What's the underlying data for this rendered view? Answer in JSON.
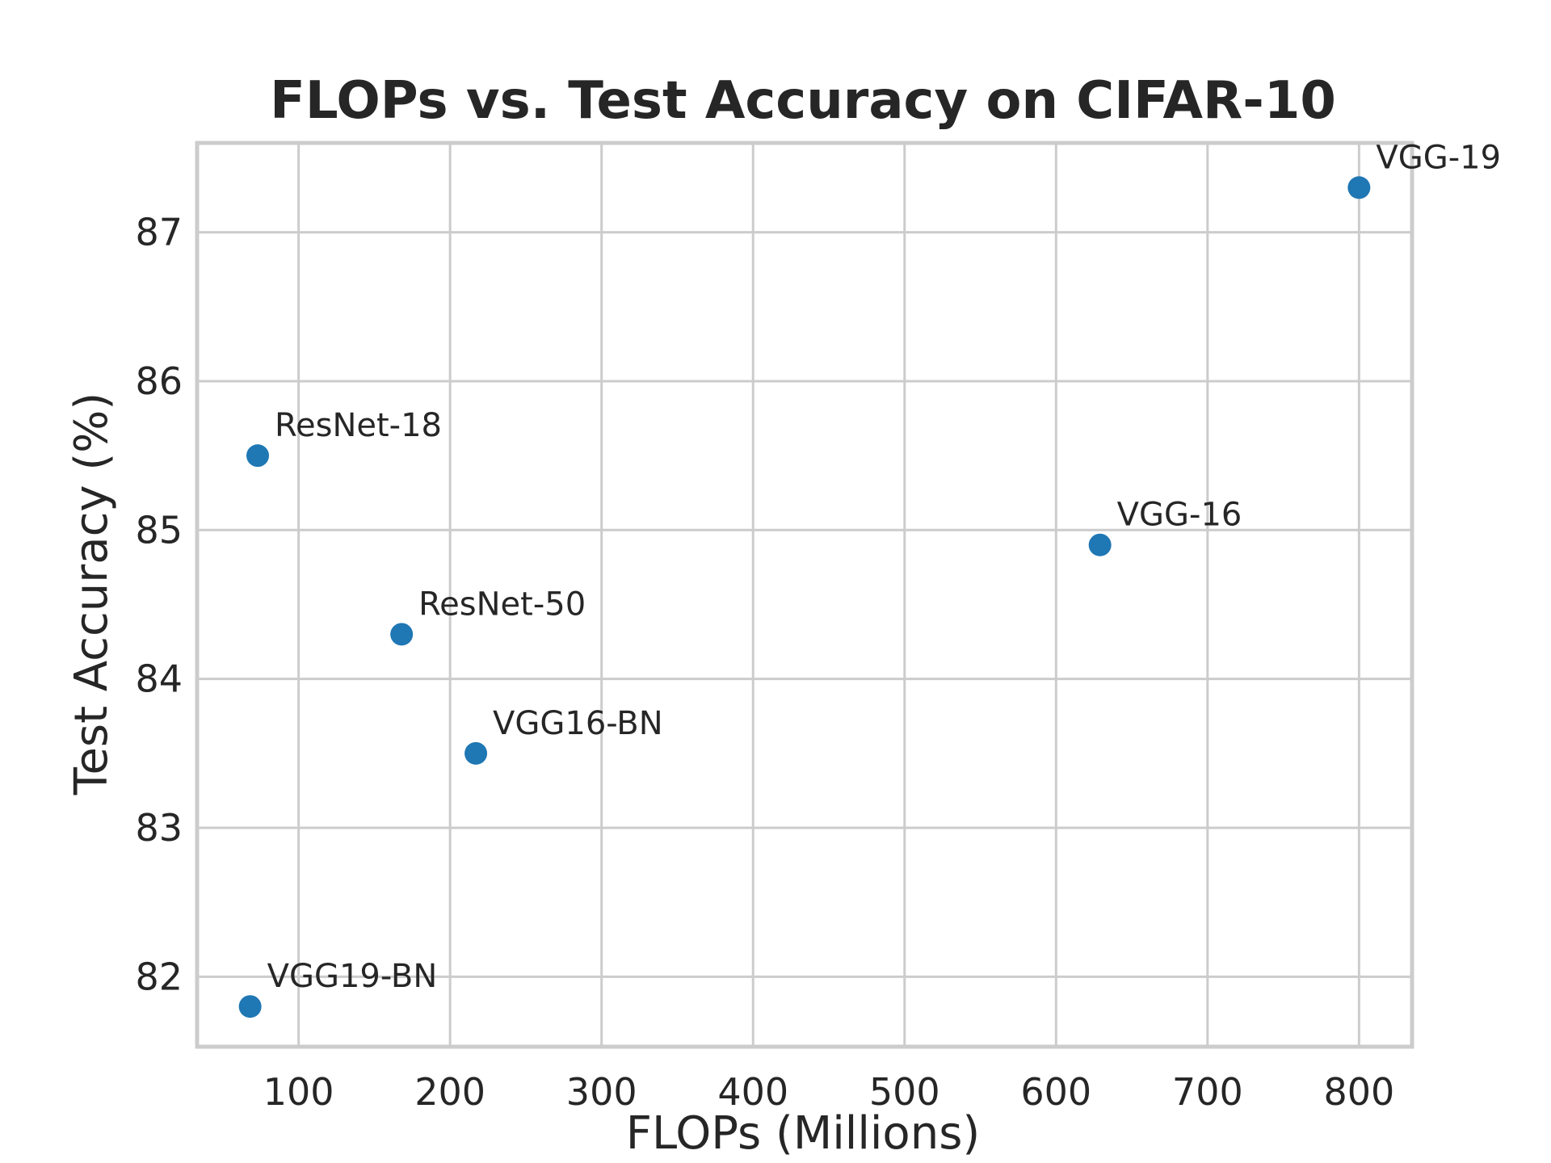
{
  "chart_data": {
    "type": "scatter",
    "title": "FLOPs vs. Test Accuracy on CIFAR-10",
    "xlabel": "FLOPs (Millions)",
    "ylabel": "Test Accuracy (%)",
    "xlim": [
      33,
      835
    ],
    "ylim": [
      81.53,
      87.6
    ],
    "xticks": [
      "100",
      "200",
      "300",
      "400",
      "500",
      "600",
      "700",
      "800"
    ],
    "yticks": [
      "82",
      "83",
      "84",
      "85",
      "86",
      "87"
    ],
    "grid": true,
    "point_color": "#1f77b4",
    "points": [
      {
        "label": "VGG-19",
        "x": 800,
        "y": 87.3
      },
      {
        "label": "ResNet-18",
        "x": 73,
        "y": 85.5
      },
      {
        "label": "VGG-16",
        "x": 629,
        "y": 84.9
      },
      {
        "label": "ResNet-50",
        "x": 168,
        "y": 84.3
      },
      {
        "label": "VGG16-BN",
        "x": 217,
        "y": 83.5
      },
      {
        "label": "VGG19-BN",
        "x": 68,
        "y": 81.8
      }
    ]
  }
}
